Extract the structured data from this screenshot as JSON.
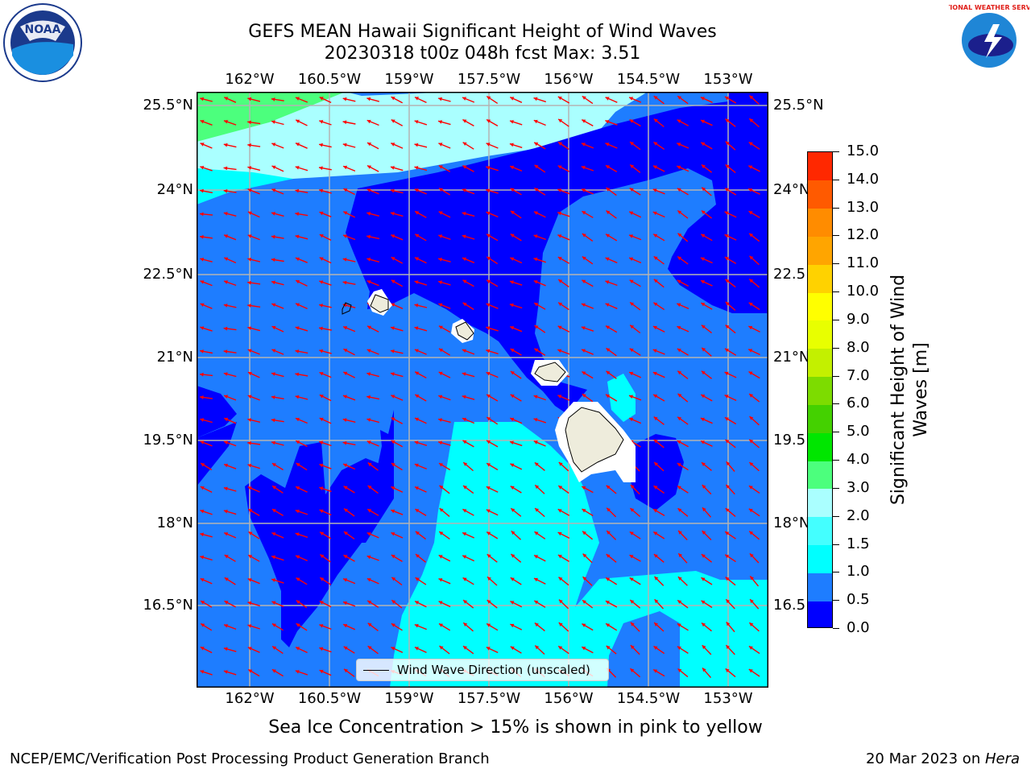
{
  "title_line1": "GEFS MEAN Hawaii Significant Height of Wind Waves",
  "title_line2": "20230318 t00z 048h fcst   Max: 3.51",
  "lon_ticks": [
    "162°W",
    "160.5°W",
    "159°W",
    "157.5°W",
    "156°W",
    "154.5°W",
    "153°W"
  ],
  "lat_ticks_left": [
    "25.5°N",
    "24°N",
    "22.5°N",
    "21°N",
    "19.5°N",
    "18°N",
    "16.5°N"
  ],
  "lat_ticks_right": [
    "25.5°N",
    "24°N",
    "22.5",
    "21°N",
    "19.5",
    "18°N",
    "16.5"
  ],
  "legend": {
    "label": "Wind Wave Direction (unscaled)"
  },
  "colorbar": {
    "title_line1": "Significant Height of Wind",
    "title_line2": "Waves [m]",
    "labels": [
      "0.0",
      "0.5",
      "1.0",
      "1.5",
      "2.0",
      "3.0",
      "4.0",
      "5.0",
      "6.0",
      "7.0",
      "8.0",
      "9.0",
      "10.0",
      "11.0",
      "12.0",
      "13.0",
      "14.0",
      "15.0"
    ],
    "colors": [
      "#0000ff",
      "#1e7dff",
      "#00ffff",
      "#44ffff",
      "#aaffff",
      "#4cff7d",
      "#00e600",
      "#44d100",
      "#7ddc00",
      "#c3f000",
      "#e8ff00",
      "#ffff00",
      "#ffd200",
      "#ffa500",
      "#ff8c00",
      "#ff5a00",
      "#ff2800"
    ]
  },
  "map_colors": {
    "deep": "#0000ff",
    "mid": "#1e7dff",
    "cyan": "#00ffff",
    "pale": "#aaffff",
    "green": "#4cff7d",
    "land": "#eeecdc",
    "arrow": "#ff0000",
    "grid": "#b4b4b4"
  },
  "caption": "Sea Ice Concentration > 15% is shown in pink to yellow",
  "footer_left": "NCEP/EMC/Verification Post Processing Product Generation Branch",
  "footer_right_date": "20 Mar 2023 on ",
  "footer_right_host": "Hera",
  "logos": {
    "left": "NOAA",
    "right": "NATIONAL WEATHER SERVICE"
  }
}
